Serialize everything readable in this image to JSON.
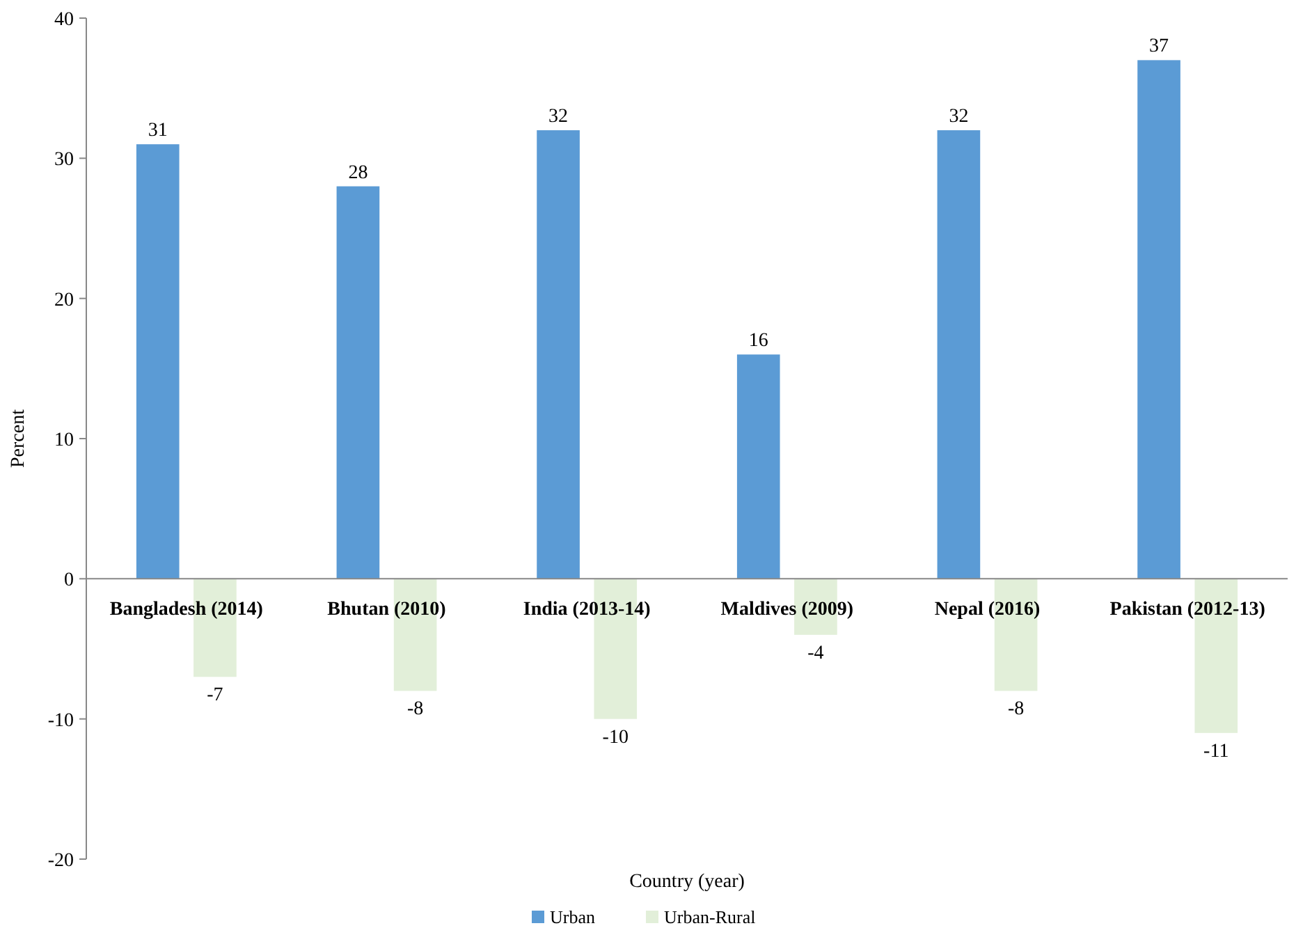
{
  "chart_data": {
    "type": "bar",
    "xlabel": "Country (year)",
    "ylabel": "Percent",
    "categories": [
      "Bangladesh (2014)",
      "Bhutan (2010)",
      "India (2013-14)",
      "Maldives (2009)",
      "Nepal (2016)",
      "Pakistan (2012-13)"
    ],
    "series": [
      {
        "name": "Urban",
        "color": "#5b9bd5",
        "values": [
          31,
          28,
          32,
          16,
          32,
          37
        ]
      },
      {
        "name": "Urban-Rural",
        "color": "#e2efd9",
        "values": [
          -7,
          -8,
          -10,
          -4,
          -8,
          -11
        ]
      }
    ],
    "ylim": [
      -20,
      40
    ],
    "yticks": [
      -20,
      -10,
      0,
      10,
      20,
      30,
      40
    ],
    "grid": false,
    "legend": "bottom",
    "data_labels": true
  }
}
